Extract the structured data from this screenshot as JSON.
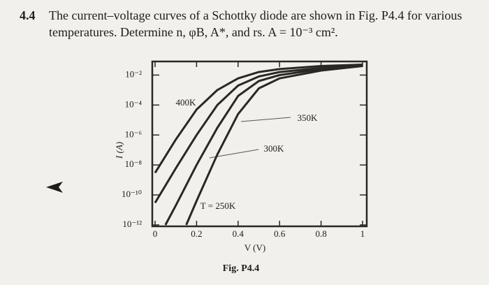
{
  "problem": {
    "number": "4.4",
    "lines": [
      "The current–voltage curves of a Schottky diode are shown in Fig. P4.4 for various",
      "temperatures. Determine n, φB, A*, and rs. A = 10⁻³ cm²."
    ]
  },
  "chart_data": {
    "type": "line",
    "caption": "Fig. P4.4",
    "xlabel": "V (V)",
    "ylabel": "I (A)",
    "log_y": true,
    "grid": false,
    "color": "#2b2723",
    "xlim": [
      0,
      1
    ],
    "xticks": [
      0,
      0.2,
      0.4,
      0.6,
      0.8,
      1
    ],
    "ylim": [
      1e-12,
      0.1
    ],
    "yticks": [
      {
        "value": 0.01,
        "label": "10⁻²"
      },
      {
        "value": 0.0001,
        "label": "10⁻⁴"
      },
      {
        "value": 1e-06,
        "label": "10⁻⁶"
      },
      {
        "value": 1e-08,
        "label": "10⁻⁸"
      },
      {
        "value": 1e-10,
        "label": "10⁻¹⁰"
      },
      {
        "value": 1e-12,
        "label": "10⁻¹²"
      }
    ],
    "series": [
      {
        "name": "400K",
        "x": [
          0,
          0.1,
          0.2,
          0.3,
          0.4,
          0.5,
          0.6,
          0.8,
          1.0
        ],
        "values": [
          3e-09,
          5e-07,
          5e-05,
          0.001,
          0.006,
          0.016,
          0.025,
          0.04,
          0.05
        ]
      },
      {
        "name": "350K",
        "x": [
          0,
          0.1,
          0.2,
          0.3,
          0.4,
          0.5,
          0.6,
          0.8,
          1.0
        ],
        "values": [
          3e-11,
          6e-09,
          1e-06,
          0.0001,
          0.002,
          0.008,
          0.016,
          0.03,
          0.045
        ]
      },
      {
        "name": "300K",
        "x": [
          0.05,
          0.1,
          0.2,
          0.3,
          0.4,
          0.5,
          0.6,
          0.8,
          1.0
        ],
        "values": [
          1e-12,
          2e-11,
          1e-08,
          3e-06,
          0.0004,
          0.004,
          0.01,
          0.025,
          0.045
        ]
      },
      {
        "name": "T = 250K",
        "x": [
          0.15,
          0.2,
          0.3,
          0.4,
          0.5,
          0.6,
          0.8,
          1.0
        ],
        "values": [
          1e-12,
          4e-11,
          5e-08,
          2.5e-05,
          0.0013,
          0.006,
          0.02,
          0.04
        ]
      }
    ]
  }
}
